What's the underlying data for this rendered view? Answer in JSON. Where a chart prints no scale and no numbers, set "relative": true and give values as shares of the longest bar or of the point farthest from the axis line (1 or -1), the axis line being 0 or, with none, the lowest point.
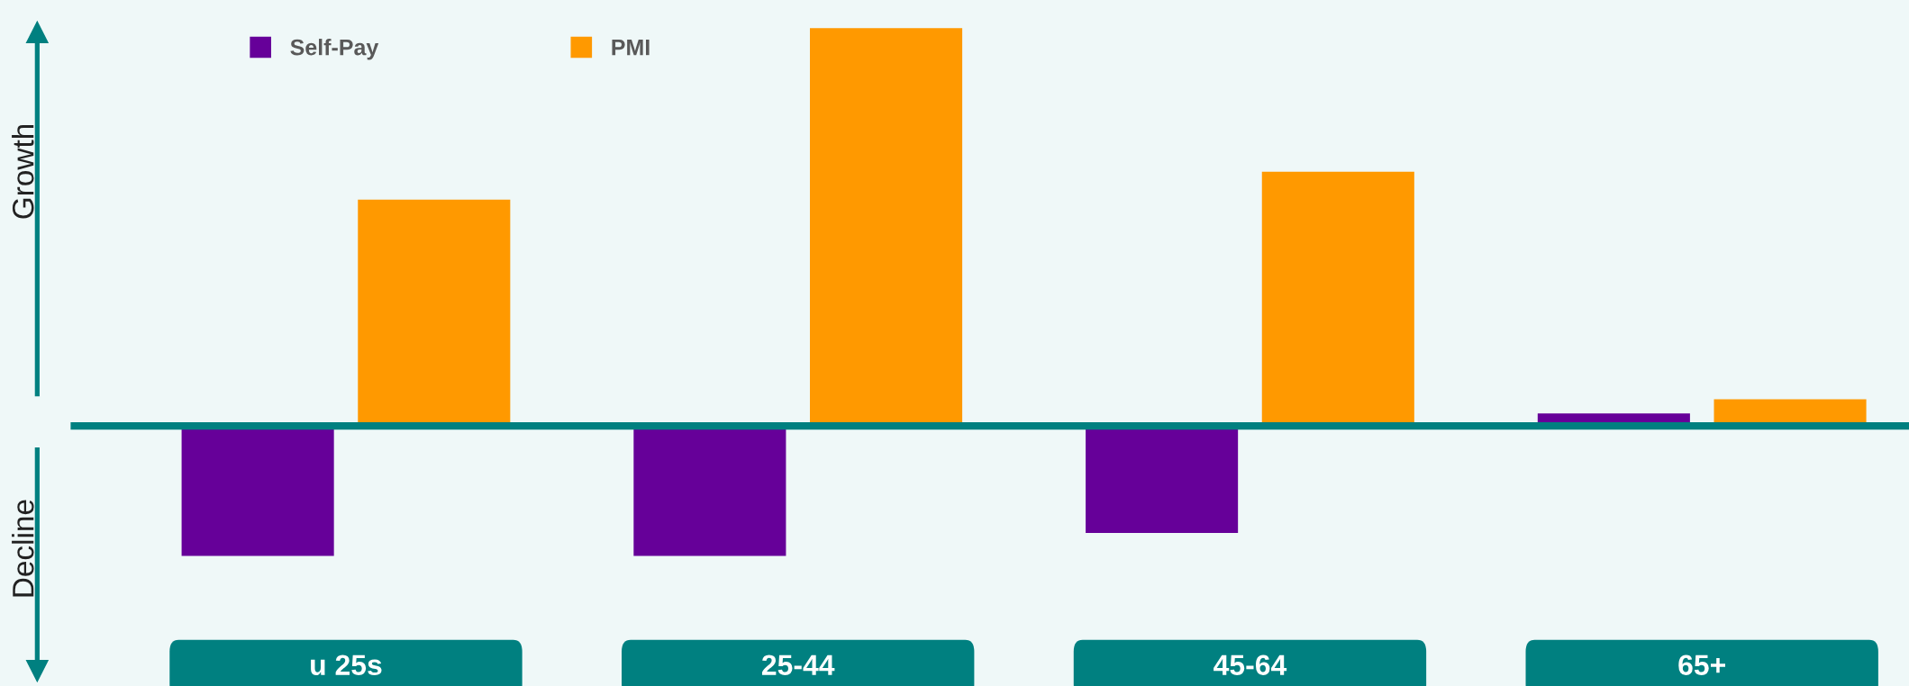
{
  "chart_data": {
    "type": "bar",
    "relative": true,
    "categories": [
      "u 25s",
      "25-44",
      "45-64",
      "65+"
    ],
    "series": [
      {
        "name": "Self-Pay",
        "color": "#660099",
        "values": [
          -0.327,
          -0.327,
          -0.269,
          0.031
        ]
      },
      {
        "name": "PMI",
        "color": "#ff9900",
        "values": [
          0.569,
          1,
          0.639,
          0.067
        ]
      }
    ],
    "legend": "top left",
    "ref_lines": [
      {
        "axis": "y",
        "value": 0,
        "color": "#008080"
      }
    ],
    "annotations": [
      "Growth",
      "Decline"
    ]
  }
}
